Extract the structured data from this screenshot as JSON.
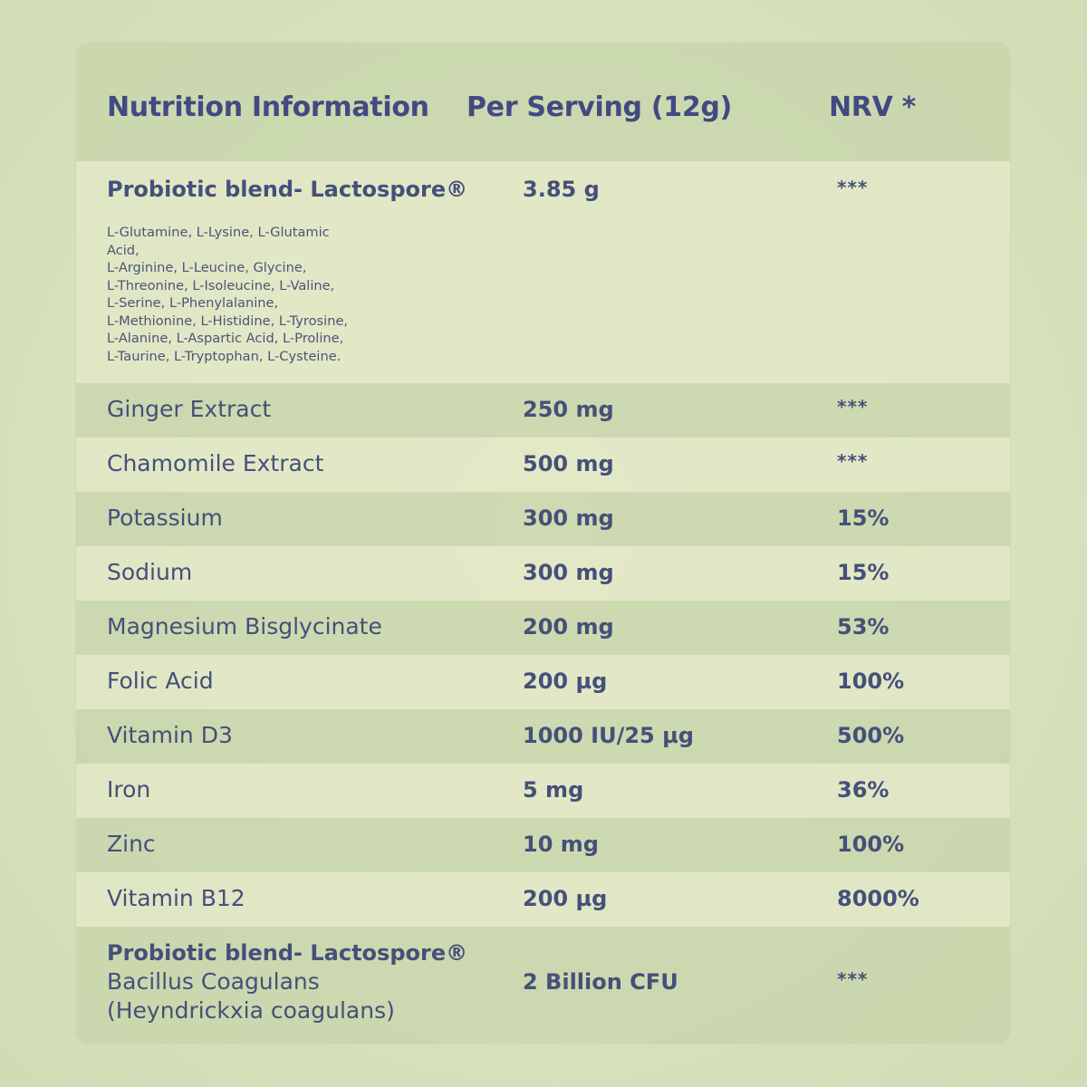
{
  "header": {
    "col1": "Nutrition Information",
    "col2": "Per Serving (12g)",
    "col3": "NRV *"
  },
  "probiotic_top": {
    "name": "Probiotic blend- Lactospore®",
    "amount": "3.85 g",
    "nrv": "***",
    "ingredients": [
      "L-Glutamine, L-Lysine, L-Glutamic",
      "Acid,",
      "L-Arginine, L-Leucine, Glycine,",
      "L-Threonine, L-Isoleucine, L-Valine,",
      "L-Serine, L-Phenylalanine,",
      "L-Methionine, L-Histidine, L-Tyrosine,",
      "L-Alanine, L-Aspartic Acid, L-Proline,",
      "L-Taurine, L-Tryptophan, L-Cysteine."
    ]
  },
  "rows": [
    {
      "name": "Ginger Extract",
      "amount": "250 mg",
      "nrv": "***"
    },
    {
      "name": "Chamomile Extract",
      "amount": "500 mg",
      "nrv": "***"
    },
    {
      "name": "Potassium",
      "amount": "300 mg",
      "nrv": "15%"
    },
    {
      "name": "Sodium",
      "amount": "300 mg",
      "nrv": "15%"
    },
    {
      "name": "Magnesium Bisglycinate",
      "amount": "200 mg",
      "nrv": "53%"
    },
    {
      "name": "Folic Acid",
      "amount": "200 µg",
      "nrv": "100%"
    },
    {
      "name": "Vitamin D3",
      "amount": "1000 IU/25 µg",
      "nrv": "500%"
    },
    {
      "name": "Iron",
      "amount": "5 mg",
      "nrv": "36%"
    },
    {
      "name": "Zinc",
      "amount": "10 mg",
      "nrv": "100%"
    },
    {
      "name": "Vitamin B12",
      "amount": "200 µg",
      "nrv": "8000%"
    }
  ],
  "probiotic_bottom": {
    "line1": "Probiotic blend- Lactospore®",
    "line2": "Bacillus Coagulans",
    "line3": "(Heyndrickxia coagulans)",
    "amount": "2 Billion CFU",
    "nrv": "***"
  }
}
